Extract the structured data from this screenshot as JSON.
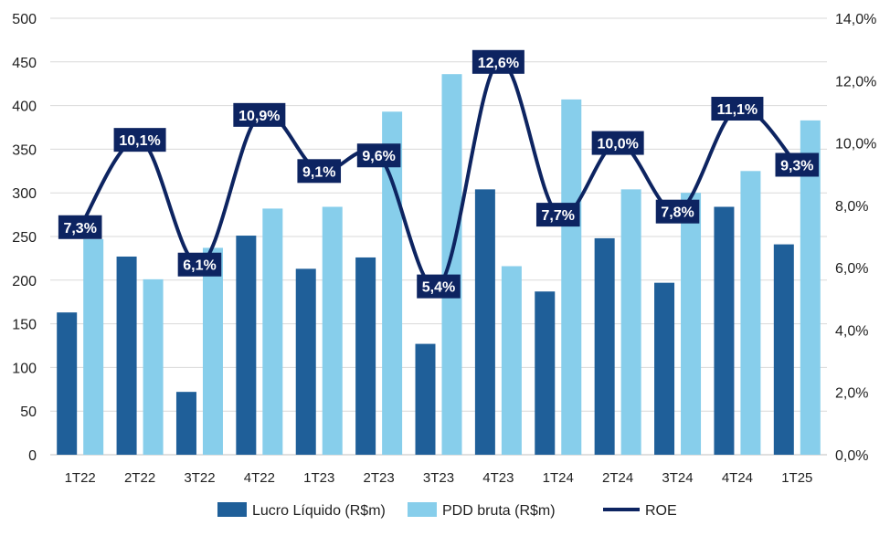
{
  "chart_data": {
    "type": "bar",
    "categories": [
      "1T22",
      "2T22",
      "3T22",
      "4T22",
      "1T23",
      "2T23",
      "3T23",
      "4T23",
      "1T24",
      "2T24",
      "3T24",
      "4T24",
      "1T25"
    ],
    "series": [
      {
        "name": "Lucro Líquido (R$m)",
        "kind": "bar",
        "axis": "left",
        "color": "#1f5f99",
        "values": [
          163,
          227,
          72,
          251,
          213,
          226,
          127,
          304,
          187,
          248,
          197,
          284,
          241
        ]
      },
      {
        "name": "PDD bruta (R$m)",
        "kind": "bar",
        "axis": "left",
        "color": "#87ceeb",
        "values": [
          247,
          201,
          237,
          282,
          284,
          393,
          436,
          216,
          407,
          304,
          300,
          325,
          383
        ]
      },
      {
        "name": "ROE",
        "kind": "line",
        "axis": "right",
        "color": "#0d2461",
        "values": [
          7.3,
          10.1,
          6.1,
          10.9,
          9.1,
          9.6,
          5.4,
          12.6,
          7.7,
          10.0,
          7.8,
          11.1,
          9.3
        ]
      }
    ],
    "roe_labels": [
      "7,3%",
      "10,1%",
      "6,1%",
      "10,9%",
      "9,1%",
      "9,6%",
      "5,4%",
      "12,6%",
      "7,7%",
      "10,0%",
      "7,8%",
      "11,1%",
      "9,3%"
    ],
    "left_axis": {
      "ticks": [
        "0",
        "50",
        "100",
        "150",
        "200",
        "250",
        "300",
        "350",
        "400",
        "450",
        "500"
      ],
      "ylim": [
        0,
        500
      ]
    },
    "right_axis": {
      "ticks": [
        "0,0%",
        "2,0%",
        "4,0%",
        "6,0%",
        "8,0%",
        "10,0%",
        "12,0%",
        "14,0%"
      ],
      "ylim": [
        0,
        14
      ]
    },
    "grid": true,
    "legend_position": "bottom",
    "legend": [
      "Lucro Líquido (R$m)",
      "PDD bruta (R$m)",
      "ROE"
    ],
    "title": "",
    "xlabel": "",
    "ylabel": ""
  }
}
